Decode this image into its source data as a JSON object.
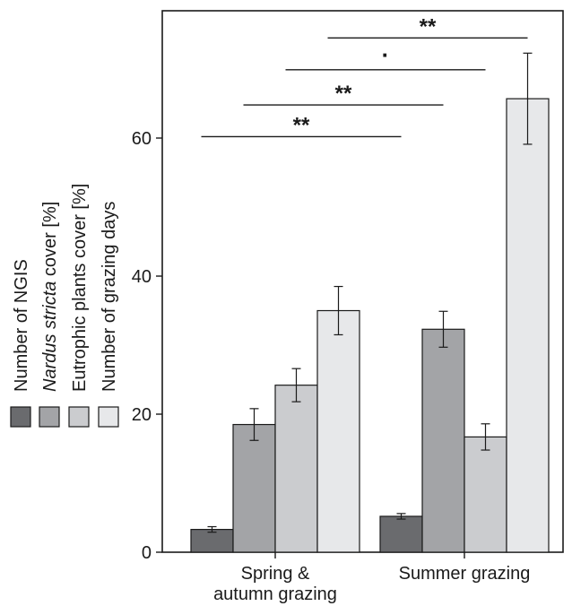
{
  "chart_data": {
    "type": "bar",
    "title": "",
    "xlabel": "",
    "ylabel": "",
    "ylim": [
      0,
      75
    ],
    "yticks": [
      0,
      20,
      40,
      60
    ],
    "grid": false,
    "legend_position": "left, rotated vertical",
    "categories": [
      "Spring & autumn grazing",
      "Summer grazing"
    ],
    "category_lines": [
      [
        "Spring &",
        "autumn grazing"
      ],
      [
        "Summer grazing"
      ]
    ],
    "series": [
      {
        "name": "Number of NGIS",
        "name_parts": [
          {
            "text": "Number of NGIS",
            "italic": false
          }
        ],
        "color": "#6a6b6e",
        "values": [
          3.3,
          5.2
        ],
        "errors": [
          0.4,
          0.4
        ]
      },
      {
        "name": "Nardus stricta cover [%]",
        "name_parts": [
          {
            "text": "Nardus stricta",
            "italic": true
          },
          {
            "text": " cover [%]",
            "italic": false
          }
        ],
        "color": "#a3a4a7",
        "values": [
          18.5,
          32.3
        ],
        "errors": [
          2.3,
          2.6
        ]
      },
      {
        "name": "Eutrophic plants cover [%]",
        "name_parts": [
          {
            "text": "Eutrophic plants cover [%]",
            "italic": false
          }
        ],
        "color": "#cbcccf",
        "values": [
          24.2,
          16.7
        ],
        "errors": [
          2.4,
          1.9
        ]
      },
      {
        "name": "Number of grazing days",
        "name_parts": [
          {
            "text": "Number of grazing days",
            "italic": false
          }
        ],
        "color": "#e7e8ea",
        "values": [
          35.0,
          65.7
        ],
        "errors": [
          3.5,
          6.6
        ]
      }
    ],
    "annotations": [
      {
        "from": {
          "category": 0,
          "series": 0
        },
        "to": {
          "category": 1,
          "series": 0
        },
        "y": 60.2,
        "label": "**"
      },
      {
        "from": {
          "category": 0,
          "series": 1
        },
        "to": {
          "category": 1,
          "series": 1
        },
        "y": 64.8,
        "label": "**"
      },
      {
        "from": {
          "category": 0,
          "series": 2
        },
        "to": {
          "category": 1,
          "series": 2
        },
        "y": 69.9,
        "label": "·"
      },
      {
        "from": {
          "category": 0,
          "series": 3
        },
        "to": {
          "category": 1,
          "series": 3
        },
        "y": 74.5,
        "label": "**"
      }
    ]
  }
}
